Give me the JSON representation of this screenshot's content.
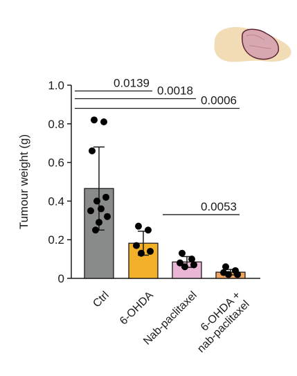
{
  "chart_data": {
    "type": "bar",
    "ylabel": "Tumour weight (g)",
    "ylim": [
      0,
      1.0
    ],
    "yticks": [
      "0",
      "0.2",
      "0.4",
      "0.6",
      "0.8",
      "1.0"
    ],
    "ytick_values": [
      0,
      0.2,
      0.4,
      0.6,
      0.8,
      1.0
    ],
    "categories": [
      "Ctrl",
      "6-OHDA",
      "Nab-paclitaxel",
      "6-OHDA +\nnab-paclitaxel"
    ],
    "category_lines": [
      [
        "Ctrl"
      ],
      [
        "6-OHDA"
      ],
      [
        "Nab-paclitaxel"
      ],
      [
        "6-OHDA +",
        "nab-paclitaxel"
      ]
    ],
    "values": [
      0.465,
      0.182,
      0.085,
      0.032
    ],
    "error": [
      0.215,
      0.062,
      0.028,
      0.014
    ],
    "colors": [
      "#898b8b",
      "#f1b027",
      "#eab6d6",
      "#f0a45c"
    ],
    "points": [
      [
        0.82,
        0.81,
        0.66,
        0.42,
        0.4,
        0.36,
        0.35,
        0.32,
        0.29,
        0.25
      ],
      [
        0.27,
        0.25,
        0.17,
        0.14,
        0.13
      ],
      [
        0.13,
        0.1,
        0.08,
        0.07,
        0.06
      ],
      [
        0.06,
        0.04,
        0.03,
        0.02,
        0.02
      ]
    ],
    "comparisons": [
      {
        "from": 0,
        "to": 1,
        "y": 0.97,
        "label": "0.0139"
      },
      {
        "from": 0,
        "to": 2,
        "y": 0.93,
        "label": "0.0018"
      },
      {
        "from": 0,
        "to": 3,
        "y": 0.88,
        "label": "0.0006"
      },
      {
        "from": 2,
        "to": 3,
        "y": 0.33,
        "label": "0.0053"
      }
    ]
  },
  "organ_icon": "pancreas-icon",
  "colors": {
    "axis": "#1a1a1a",
    "point": "#000000",
    "organ": "#f0d8b0",
    "organ_highlight": "#dba6b2",
    "organ_outline": "#5b2434"
  }
}
